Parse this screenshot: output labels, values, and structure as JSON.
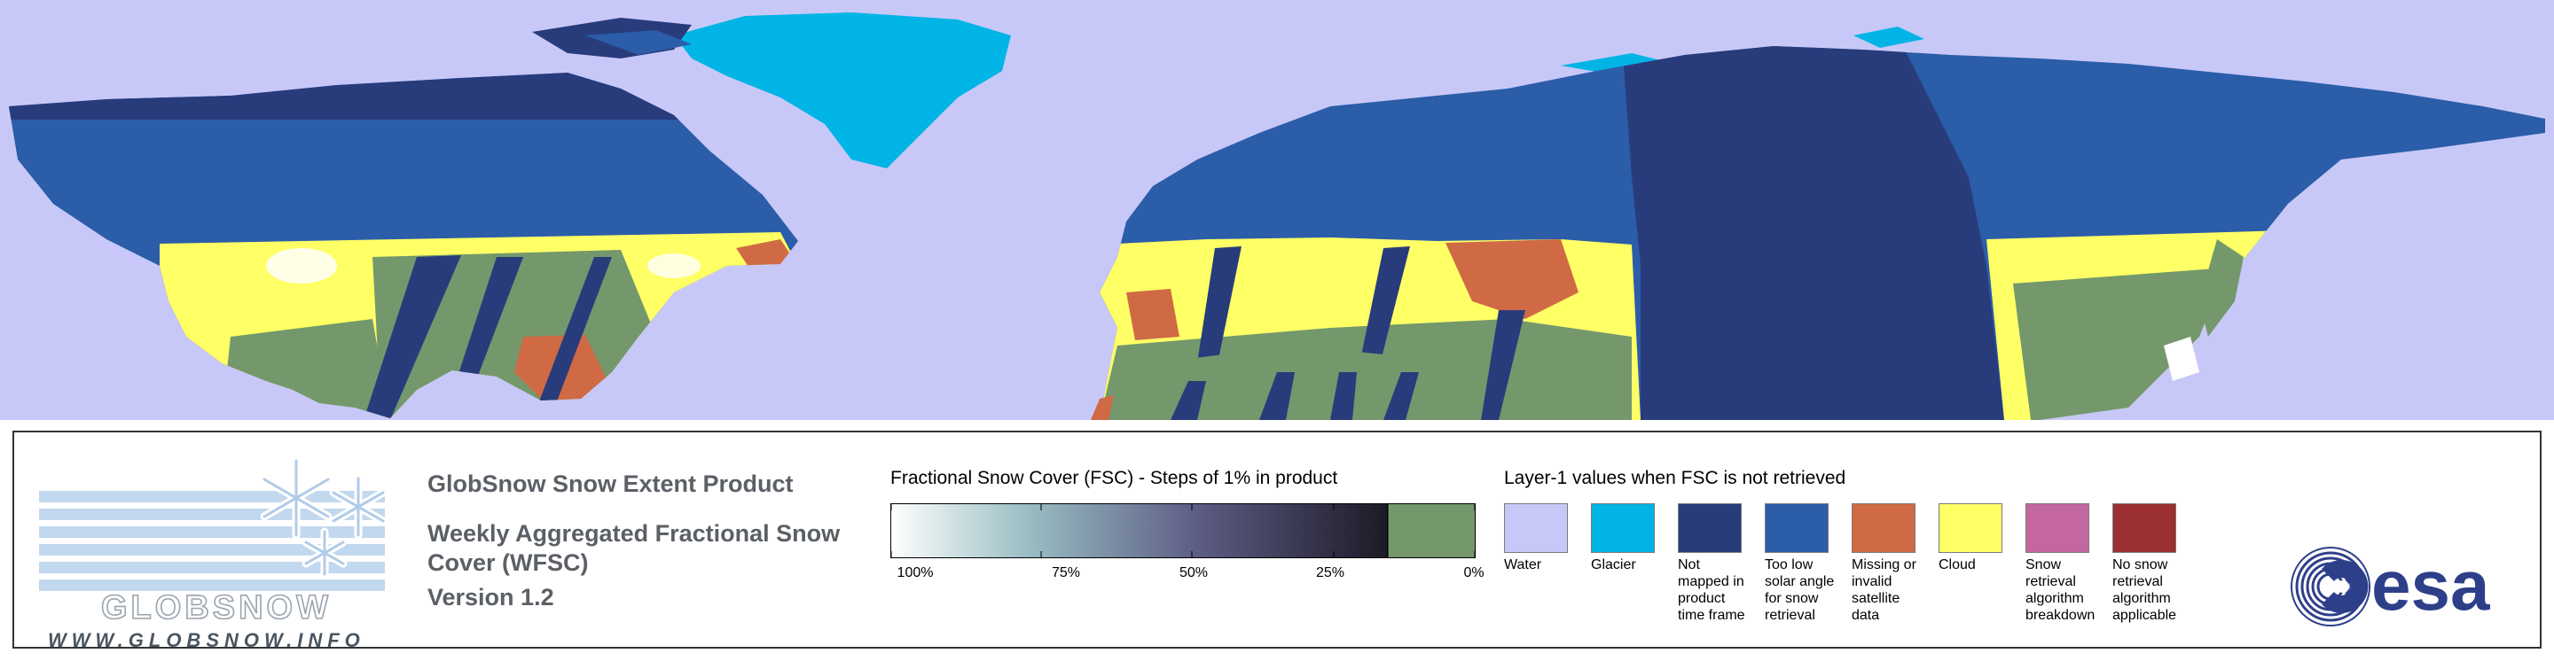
{
  "map": {
    "colors": {
      "background": "#c8c8f8",
      "glacier": "#00b4e6",
      "not_mapped": "#283c7c",
      "low_solar_angle": "#2b5da9",
      "missing_data": "#d06a44",
      "cloud": "#ffff66",
      "snow_free": "#74986c",
      "snow": "#ffffff"
    }
  },
  "logos": {
    "globsnow": {
      "wordmark": "GLOBSNOW",
      "url": "WWW.GLOBSNOW.INFO",
      "icon": "snowflake-icon"
    },
    "esa": {
      "wordmark": "esa",
      "icon": "esa-swirl-icon",
      "color": "#2e3f8a"
    }
  },
  "product": {
    "title": "GlobSnow Snow Extent Product",
    "subtitle": "Weekly Aggregated Fractional Snow Cover (WFSC)",
    "version": "Version 1.2"
  },
  "fsc_legend": {
    "title": "Fractional Snow Cover (FSC) - Steps of 1% in product",
    "ticks": [
      "100%",
      "75%",
      "50%",
      "25%",
      "0%"
    ],
    "gradient_start": "#ffffff",
    "gradient_end": "#1c1a26",
    "zero_color": "#74986c"
  },
  "layer1_legend": {
    "title": "Layer-1 values when FSC is not retrieved",
    "items": [
      {
        "label": "Water",
        "color": "#c8c8f8"
      },
      {
        "label": "Glacier",
        "color": "#00b4e6"
      },
      {
        "label": "Not\nmapped in\nproduct\ntime frame",
        "color": "#283c7c"
      },
      {
        "label": "Too low\nsolar angle\nfor snow\nretrieval",
        "color": "#2b5da9"
      },
      {
        "label": "Missing or\ninvalid satellite\ndata",
        "color": "#d06a44"
      },
      {
        "label": "Cloud",
        "color": "#ffff66"
      },
      {
        "label": "Snow retrieval\nalgorithm\nbreakdown",
        "color": "#c466a0"
      },
      {
        "label": "No snow\nretrieval\nalgorithm\napplicable",
        "color": "#9b2f31"
      }
    ]
  }
}
